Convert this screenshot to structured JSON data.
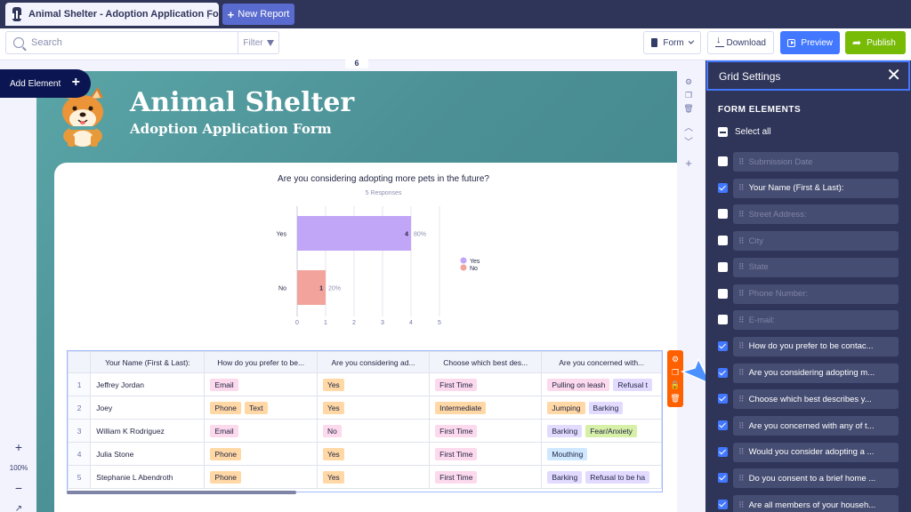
{
  "tabs": {
    "active_title": "Animal Shelter - Adoption Application Form",
    "new_report_label": "New Report"
  },
  "toolbar": {
    "search_placeholder": "Search",
    "filter_label": "Filter",
    "form_label": "Form",
    "download_label": "Download",
    "preview_label": "Preview",
    "publish_label": "Publish"
  },
  "canvas": {
    "ruler_badge": "6",
    "add_element_label": "Add Element",
    "zoom_level": "100%"
  },
  "header": {
    "title": "Animal Shelter",
    "subtitle": "Adoption Application Form"
  },
  "chart_data": {
    "type": "bar",
    "orientation": "horizontal",
    "title": "Are you considering adopting more pets in the future?",
    "subtitle": "5 Responses",
    "categories": [
      "Yes",
      "No"
    ],
    "values": [
      4,
      1
    ],
    "percent_labels": [
      "80%",
      "20%"
    ],
    "colors": [
      "#c1a6f7",
      "#f2a49c"
    ],
    "xlim": [
      0,
      5
    ],
    "xticks": [
      "0",
      "1",
      "2",
      "3",
      "4",
      "5"
    ],
    "legend": [
      "Yes",
      "No"
    ],
    "legend_position": "right",
    "grid": true
  },
  "table": {
    "columns": [
      "Your Name (First & Last):",
      "How do you prefer to be...",
      "Are you considering ad...",
      "Choose which best des...",
      "Are you concerned with..."
    ],
    "rows": [
      {
        "num": "1",
        "name": "Jeffrey Jordan",
        "contact": [
          "Email"
        ],
        "adopt": "Yes",
        "best": "First Time",
        "concerns": [
          "Pulling on leash",
          "Refusal t"
        ]
      },
      {
        "num": "2",
        "name": "Joey",
        "contact": [
          "Phone",
          "Text"
        ],
        "adopt": "Yes",
        "best": "Intermediate",
        "concerns": [
          "Jumping",
          "Barking"
        ]
      },
      {
        "num": "3",
        "name": "William K Rodriguez",
        "contact": [
          "Email"
        ],
        "adopt": "No",
        "best": "First Time",
        "concerns": [
          "Barking",
          "Fear/Anxiety"
        ]
      },
      {
        "num": "4",
        "name": "Julia Stone",
        "contact": [
          "Phone"
        ],
        "adopt": "Yes",
        "best": "First Time",
        "concerns": [
          "Mouthing"
        ]
      },
      {
        "num": "5",
        "name": "Stephanie L Abendroth",
        "contact": [
          "Phone"
        ],
        "adopt": "Yes",
        "best": "First Time",
        "concerns": [
          "Barking",
          "Refusal to be ha"
        ]
      }
    ]
  },
  "panel": {
    "title": "Grid Settings",
    "section_label": "FORM ELEMENTS",
    "select_all_label": "Select all",
    "fields": [
      {
        "label": "Submission Date",
        "checked": false
      },
      {
        "label": "Your Name (First & Last):",
        "checked": true
      },
      {
        "label": "Street Address:",
        "checked": false
      },
      {
        "label": "City",
        "checked": false
      },
      {
        "label": "State",
        "checked": false
      },
      {
        "label": "Phone Number:",
        "checked": false
      },
      {
        "label": "E-mail:",
        "checked": false
      },
      {
        "label": "How do you prefer to be contac...",
        "checked": true
      },
      {
        "label": "Are you considering adopting m...",
        "checked": true
      },
      {
        "label": "Choose which best describes y...",
        "checked": true
      },
      {
        "label": "Are you concerned with any of t...",
        "checked": true
      },
      {
        "label": "Would you consider adopting a ...",
        "checked": true
      },
      {
        "label": "Do you consent to a brief home ...",
        "checked": true
      },
      {
        "label": "Are all members of your househ...",
        "checked": true
      }
    ]
  }
}
